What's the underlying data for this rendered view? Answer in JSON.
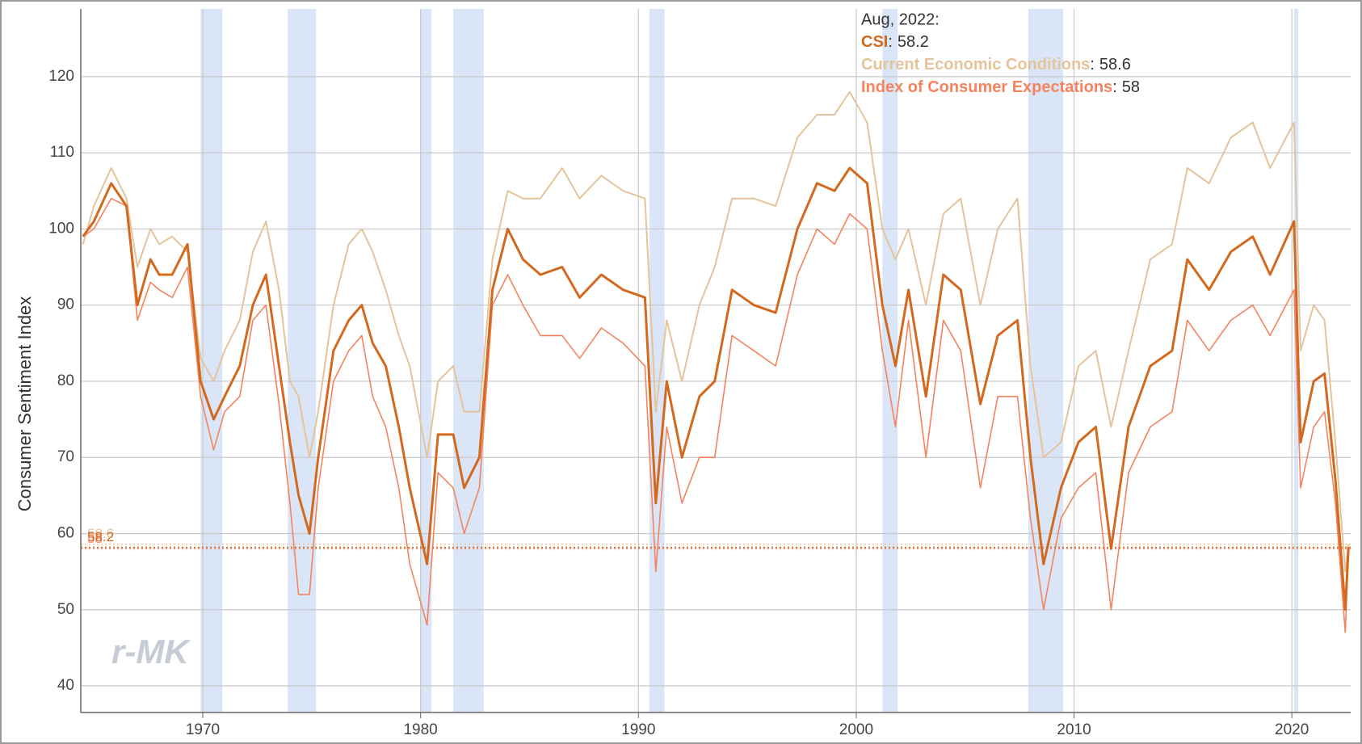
{
  "chart_data": {
    "type": "line",
    "ylabel": "Consumer Sentiment Index",
    "watermark": "r-MK",
    "xlim": [
      1964.4,
      2022.7
    ],
    "ylim": [
      36.5,
      128.9
    ],
    "xticks": [
      1970,
      1980,
      1990,
      2000,
      2010,
      2020
    ],
    "yticks": [
      40,
      50,
      60,
      70,
      80,
      90,
      100,
      110,
      120
    ],
    "grid": true,
    "recessions": [
      [
        1969.9,
        1970.9
      ],
      [
        1973.9,
        1975.2
      ],
      [
        1980.0,
        1980.5
      ],
      [
        1981.5,
        1982.9
      ],
      [
        1990.5,
        1991.2
      ],
      [
        2001.2,
        2001.9
      ],
      [
        2007.9,
        2009.5
      ],
      [
        2020.1,
        2020.3
      ]
    ],
    "recession_color": "#dae6f7",
    "tooltip": {
      "title": "Aug, 2022:",
      "separator": ":"
    },
    "x": [
      1964.5,
      1965.0,
      1965.8,
      1966.5,
      1967.0,
      1967.6,
      1968.0,
      1968.6,
      1969.3,
      1969.9,
      1970.5,
      1971.0,
      1971.7,
      1972.3,
      1972.9,
      1973.5,
      1974.0,
      1974.4,
      1974.9,
      1975.3,
      1976.0,
      1976.7,
      1977.3,
      1977.8,
      1978.4,
      1979.0,
      1979.5,
      1980.3,
      1980.8,
      1981.5,
      1982.0,
      1982.7,
      1983.3,
      1984.0,
      1984.7,
      1985.5,
      1986.5,
      1987.3,
      1988.3,
      1989.3,
      1990.3,
      1990.8,
      1991.3,
      1992.0,
      1992.8,
      1993.5,
      1994.3,
      1995.3,
      1996.3,
      1997.3,
      1998.2,
      1999.0,
      1999.7,
      2000.5,
      2001.2,
      2001.8,
      2002.4,
      2003.2,
      2004.0,
      2004.8,
      2005.7,
      2006.5,
      2007.4,
      2008.0,
      2008.6,
      2009.4,
      2010.2,
      2011.0,
      2011.7,
      2012.5,
      2013.5,
      2014.5,
      2015.2,
      2016.2,
      2017.2,
      2018.2,
      2019.0,
      2020.1,
      2020.4,
      2021.0,
      2021.5,
      2022.0,
      2022.45,
      2022.6
    ],
    "series": [
      {
        "name": "Current Economic Conditions",
        "color": "#e5c49c",
        "width": 2,
        "values": [
          98,
          103,
          108,
          104,
          95,
          100,
          98,
          99,
          97,
          83,
          80,
          84,
          88,
          97,
          101,
          92,
          80,
          78,
          70,
          76,
          90,
          98,
          100,
          97,
          92,
          86,
          82,
          70,
          80,
          82,
          76,
          76,
          96,
          105,
          104,
          104,
          108,
          104,
          107,
          105,
          104,
          76,
          88,
          80,
          90,
          95,
          104,
          104,
          103,
          112,
          115,
          115,
          118,
          114,
          100,
          96,
          100,
          90,
          102,
          104,
          90,
          100,
          104,
          82,
          70,
          72,
          82,
          84,
          74,
          84,
          96,
          98,
          108,
          106,
          112,
          114,
          108,
          114,
          84,
          90,
          88,
          72,
          55,
          58.6
        ]
      },
      {
        "name": "Index of Consumer Expectations",
        "color": "#f4845f",
        "width": 1.6,
        "values": [
          99,
          100,
          104,
          103,
          88,
          93,
          92,
          91,
          95,
          78,
          71,
          76,
          78,
          88,
          90,
          77,
          64,
          52,
          52,
          66,
          80,
          84,
          86,
          78,
          74,
          66,
          56,
          48,
          68,
          66,
          60,
          66,
          90,
          94,
          90,
          86,
          86,
          83,
          87,
          85,
          82,
          55,
          74,
          64,
          70,
          70,
          86,
          84,
          82,
          94,
          100,
          98,
          102,
          100,
          84,
          74,
          88,
          70,
          88,
          84,
          66,
          78,
          78,
          62,
          50,
          62,
          66,
          68,
          50,
          68,
          74,
          76,
          88,
          84,
          88,
          90,
          86,
          92,
          66,
          74,
          76,
          64,
          47,
          58
        ]
      },
      {
        "name": "CSI",
        "color": "#d2691e",
        "width": 3,
        "values": [
          99,
          101,
          106,
          103,
          90,
          96,
          94,
          94,
          98,
          80,
          75,
          78,
          82,
          90,
          94,
          82,
          72,
          65,
          60,
          70,
          84,
          88,
          90,
          85,
          82,
          74,
          66,
          56,
          73,
          73,
          66,
          70,
          92,
          100,
          96,
          94,
          95,
          91,
          94,
          92,
          91,
          64,
          80,
          70,
          78,
          80,
          92,
          90,
          89,
          100,
          106,
          105,
          108,
          106,
          90,
          82,
          92,
          78,
          94,
          92,
          77,
          86,
          88,
          70,
          56,
          66,
          72,
          74,
          58,
          74,
          82,
          84,
          96,
          92,
          97,
          99,
          94,
          101,
          72,
          80,
          81,
          67,
          50,
          58.2
        ]
      }
    ]
  }
}
